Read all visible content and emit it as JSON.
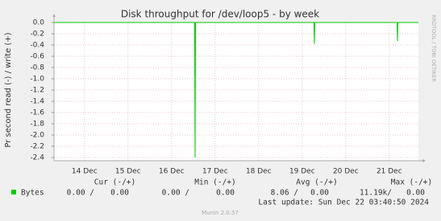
{
  "chart_data": {
    "type": "line",
    "title": "Disk throughput for /dev/loop5 - by week",
    "y_label": "Pr second read (-) / write (+)",
    "side_label": "RRDTOOL / TOBI OETIKER",
    "xlim": [
      13.3,
      21.67
    ],
    "xticks": [
      {
        "value": 14,
        "label": "14 Dec"
      },
      {
        "value": 15,
        "label": "15 Dec"
      },
      {
        "value": 16,
        "label": "16 Dec"
      },
      {
        "value": 17,
        "label": "17 Dec"
      },
      {
        "value": 18,
        "label": "18 Dec"
      },
      {
        "value": 19,
        "label": "19 Dec"
      },
      {
        "value": 20,
        "label": "20 Dec"
      },
      {
        "value": 21,
        "label": "21 Dec"
      }
    ],
    "ylim": [
      -2.4,
      0
    ],
    "yticks": [
      {
        "value": 0,
        "label": "0.0"
      },
      -0.2,
      -0.4,
      -0.6,
      -0.8,
      {
        "value": -1,
        "label": "-1.0"
      },
      -1.2,
      -1.4,
      -1.6,
      -1.8,
      {
        "value": -2,
        "label": "-2.0"
      },
      -2.2,
      -2.4
    ],
    "grid": true,
    "series": [
      {
        "name": "Bytes",
        "color": "#00cc00",
        "x": [
          13.3,
          16.53,
          16.54,
          16.55,
          19.27,
          19.28,
          19.29,
          21.18,
          21.19,
          21.2,
          21.67
        ],
        "values": [
          0,
          0,
          -2.4,
          0,
          0,
          -0.38,
          0,
          0,
          -0.33,
          0,
          0
        ]
      }
    ],
    "stat_headers": [
      "Cur (-/+)",
      "Min (-/+)",
      "Avg (-/+)",
      "Max (-/+)"
    ],
    "stats": [
      [
        "0.00 /",
        "0.00"
      ],
      [
        "0.00 /",
        "0.00"
      ],
      [
        "8.06 /",
        "0.00"
      ],
      [
        "11.19k/",
        "0.00"
      ]
    ],
    "last_update": "Last update: Sun Dec 22 03:40:50 2024",
    "footer": "Munin 2.0.57"
  }
}
